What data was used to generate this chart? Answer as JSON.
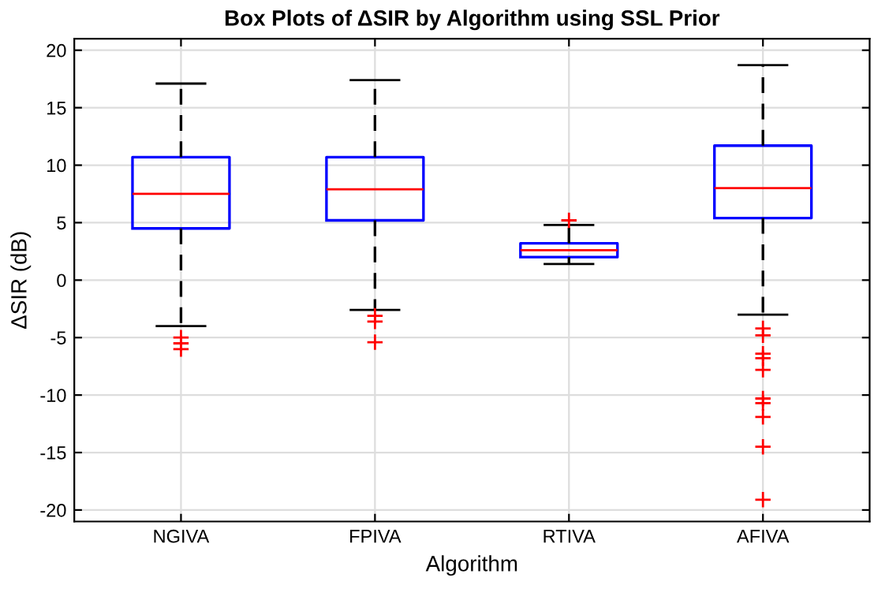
{
  "chart_data": {
    "type": "box",
    "title": "Box Plots of ΔSIR by Algorithm using SSL Prior",
    "xlabel": "Algorithm",
    "ylabel": "ΔSIR (dB)",
    "categories": [
      "NGIVA",
      "FPIVA",
      "RTIVA",
      "AFIVA"
    ],
    "boxes": [
      {
        "low": -4.0,
        "q1": 4.5,
        "median": 7.5,
        "q3": 10.7,
        "high": 17.1,
        "outliers": [
          -5.0,
          -5.5,
          -6.0
        ]
      },
      {
        "low": -2.6,
        "q1": 5.2,
        "median": 7.9,
        "q3": 10.7,
        "high": 17.4,
        "outliers": [
          -3.1,
          -3.6,
          -5.4
        ]
      },
      {
        "low": 1.4,
        "q1": 2.0,
        "median": 2.6,
        "q3": 3.2,
        "high": 4.8,
        "outliers": [
          5.2
        ]
      },
      {
        "low": -3.0,
        "q1": 5.4,
        "median": 8.0,
        "q3": 11.7,
        "high": 18.7,
        "outliers": [
          -4.2,
          -4.8,
          -6.4,
          -6.8,
          -7.8,
          -10.3,
          -10.7,
          -11.9,
          -14.5,
          -19.1
        ]
      }
    ],
    "color": "#0000ff",
    "ylim": [
      -21,
      21
    ],
    "yticks": [
      -20,
      -15,
      -10,
      -5,
      0,
      5,
      10,
      15,
      20
    ],
    "grid": true,
    "legend": false
  }
}
